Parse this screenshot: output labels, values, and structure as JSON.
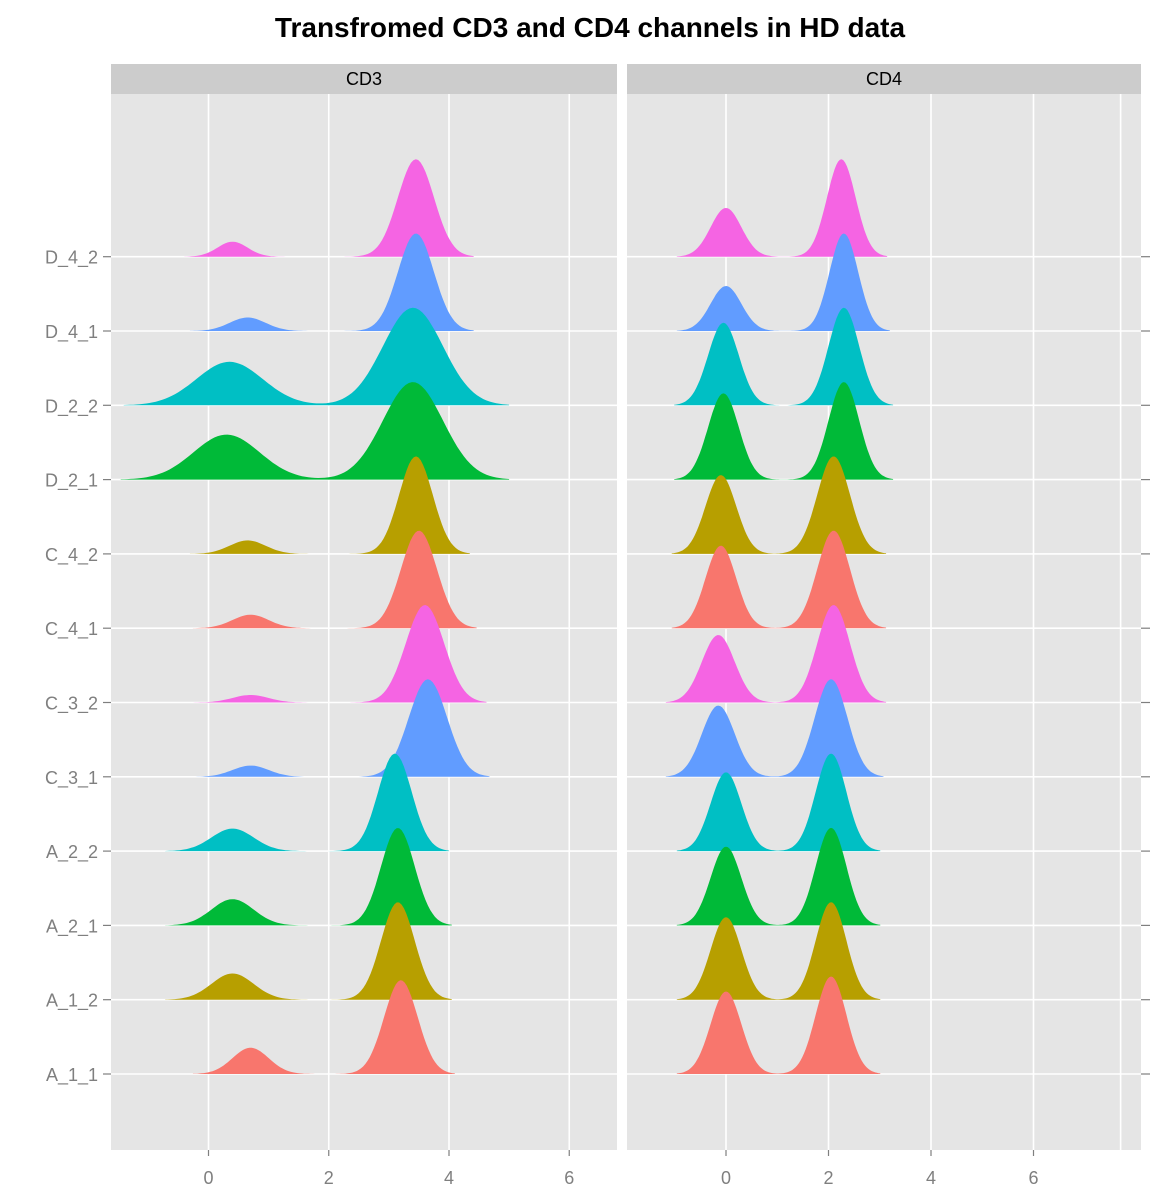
{
  "chart_data": {
    "type": "density-ridgeline",
    "title": "Transfromed CD3 and CD4 channels in HD data",
    "panels": [
      "CD3",
      "CD4"
    ],
    "samples": [
      "A_1_1",
      "A_1_2",
      "A_2_1",
      "A_2_2",
      "C_3_1",
      "C_3_2",
      "C_4_1",
      "C_4_2",
      "D_2_1",
      "D_2_2",
      "D_4_1",
      "D_4_2"
    ],
    "series_colors": {
      "A_1_1": "#f8766d",
      "A_1_2": "#b79f00",
      "A_2_1": "#00ba38",
      "A_2_2": "#00bfc4",
      "C_3_1": "#619cff",
      "C_3_2": "#f564e3",
      "C_4_1": "#f8766d",
      "C_4_2": "#b79f00",
      "D_2_1": "#00ba38",
      "D_2_2": "#00bfc4",
      "D_4_1": "#619cff",
      "D_4_2": "#f564e3"
    },
    "x_ticks": [
      0,
      2,
      4,
      6
    ],
    "x_tick_labels": [
      "0",
      "2",
      "4",
      "6"
    ],
    "xlim": [
      -1.6,
      7.7
    ],
    "peaks": {
      "CD3": {
        "A_1_1": [
          {
            "mu": 0.7,
            "sd": 0.3,
            "h": 0.35
          },
          {
            "mu": 3.2,
            "sd": 0.28,
            "h": 1.25
          }
        ],
        "A_1_2": [
          {
            "mu": 0.4,
            "sd": 0.35,
            "h": 0.35
          },
          {
            "mu": 3.15,
            "sd": 0.28,
            "h": 1.3
          }
        ],
        "A_2_1": [
          {
            "mu": 0.4,
            "sd": 0.35,
            "h": 0.35
          },
          {
            "mu": 3.15,
            "sd": 0.28,
            "h": 1.3
          }
        ],
        "A_2_2": [
          {
            "mu": 0.4,
            "sd": 0.35,
            "h": 0.3
          },
          {
            "mu": 3.1,
            "sd": 0.28,
            "h": 1.3
          }
        ],
        "C_3_1": [
          {
            "mu": 0.7,
            "sd": 0.3,
            "h": 0.15
          },
          {
            "mu": 3.65,
            "sd": 0.32,
            "h": 1.3
          }
        ],
        "C_3_2": [
          {
            "mu": 0.7,
            "sd": 0.3,
            "h": 0.1
          },
          {
            "mu": 3.6,
            "sd": 0.32,
            "h": 1.3
          }
        ],
        "C_4_1": [
          {
            "mu": 0.7,
            "sd": 0.3,
            "h": 0.18
          },
          {
            "mu": 3.5,
            "sd": 0.3,
            "h": 1.3
          }
        ],
        "C_4_2": [
          {
            "mu": 0.65,
            "sd": 0.3,
            "h": 0.18
          },
          {
            "mu": 3.45,
            "sd": 0.28,
            "h": 1.3
          }
        ],
        "D_2_1": [
          {
            "mu": 0.3,
            "sd": 0.55,
            "h": 0.6
          },
          {
            "mu": 3.4,
            "sd": 0.5,
            "h": 1.3
          }
        ],
        "D_2_2": [
          {
            "mu": 0.35,
            "sd": 0.55,
            "h": 0.58
          },
          {
            "mu": 3.4,
            "sd": 0.5,
            "h": 1.3
          }
        ],
        "D_4_1": [
          {
            "mu": 0.65,
            "sd": 0.3,
            "h": 0.18
          },
          {
            "mu": 3.45,
            "sd": 0.3,
            "h": 1.3
          }
        ],
        "D_4_2": [
          {
            "mu": 0.4,
            "sd": 0.25,
            "h": 0.2
          },
          {
            "mu": 3.45,
            "sd": 0.3,
            "h": 1.3
          }
        ]
      },
      "CD4": {
        "A_1_1": [
          {
            "mu": 0.0,
            "sd": 0.3,
            "h": 1.1
          },
          {
            "mu": 2.05,
            "sd": 0.3,
            "h": 1.3
          }
        ],
        "A_1_2": [
          {
            "mu": 0.0,
            "sd": 0.3,
            "h": 1.1
          },
          {
            "mu": 2.05,
            "sd": 0.3,
            "h": 1.3
          }
        ],
        "A_2_1": [
          {
            "mu": 0.0,
            "sd": 0.3,
            "h": 1.05
          },
          {
            "mu": 2.05,
            "sd": 0.3,
            "h": 1.3
          }
        ],
        "A_2_2": [
          {
            "mu": 0.0,
            "sd": 0.3,
            "h": 1.05
          },
          {
            "mu": 2.05,
            "sd": 0.3,
            "h": 1.3
          }
        ],
        "C_3_1": [
          {
            "mu": -0.15,
            "sd": 0.32,
            "h": 0.95
          },
          {
            "mu": 2.05,
            "sd": 0.32,
            "h": 1.3
          }
        ],
        "C_3_2": [
          {
            "mu": -0.15,
            "sd": 0.32,
            "h": 0.9
          },
          {
            "mu": 2.1,
            "sd": 0.32,
            "h": 1.3
          }
        ],
        "C_4_1": [
          {
            "mu": -0.1,
            "sd": 0.3,
            "h": 1.1
          },
          {
            "mu": 2.1,
            "sd": 0.32,
            "h": 1.3
          }
        ],
        "C_4_2": [
          {
            "mu": -0.1,
            "sd": 0.3,
            "h": 1.05
          },
          {
            "mu": 2.1,
            "sd": 0.32,
            "h": 1.3
          }
        ],
        "D_2_1": [
          {
            "mu": -0.05,
            "sd": 0.3,
            "h": 1.15
          },
          {
            "mu": 2.3,
            "sd": 0.3,
            "h": 1.3
          }
        ],
        "D_2_2": [
          {
            "mu": -0.05,
            "sd": 0.3,
            "h": 1.1
          },
          {
            "mu": 2.3,
            "sd": 0.3,
            "h": 1.3
          }
        ],
        "D_4_1": [
          {
            "mu": 0.0,
            "sd": 0.3,
            "h": 0.6
          },
          {
            "mu": 2.3,
            "sd": 0.28,
            "h": 1.3
          }
        ],
        "D_4_2": [
          {
            "mu": 0.0,
            "sd": 0.3,
            "h": 0.65
          },
          {
            "mu": 2.25,
            "sd": 0.28,
            "h": 1.3
          }
        ]
      }
    },
    "grid": true
  }
}
